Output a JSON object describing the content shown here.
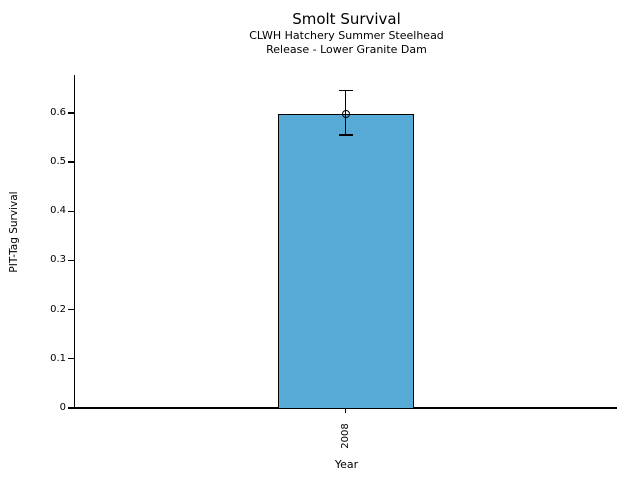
{
  "chart_data": {
    "type": "bar",
    "title": "Smolt Survival",
    "subtitle_line1": "CLWH Hatchery Summer Steelhead",
    "subtitle_line2": "Release - Lower Granite Dam",
    "xlabel": "Year",
    "ylabel": "PIT-Tag Survival",
    "categories": [
      "2008"
    ],
    "values": [
      0.598
    ],
    "error_bars": [
      {
        "lower": 0.555,
        "upper": 0.645
      }
    ],
    "marker": "open-circle",
    "yticks": [
      0,
      0.1,
      0.2,
      0.3,
      0.4,
      0.5,
      0.6
    ],
    "ytick_labels": [
      "0",
      "0.1",
      "0.2",
      "0.3",
      "0.4",
      "0.5",
      "0.6"
    ],
    "ylim": [
      0,
      0.677
    ],
    "grid": false,
    "legend": false,
    "background_color": "#ffffff",
    "bar_color": "#58aad6",
    "bar_edge_color": "#000000",
    "axis_color": "#000000",
    "text_color": "#000000"
  }
}
